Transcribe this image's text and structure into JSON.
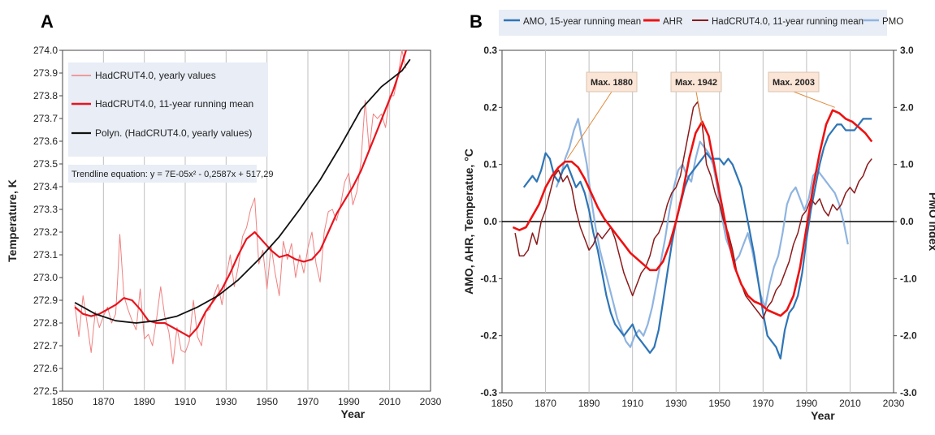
{
  "chart_data": [
    {
      "panel_label": "A",
      "type": "line",
      "xlabel": "Year",
      "ylabel": "Temperature, K",
      "xlim": [
        1850,
        2030
      ],
      "ylim": [
        272.5,
        274.0
      ],
      "xticks": [
        "1850",
        "1870",
        "1890",
        "1910",
        "1930",
        "1950",
        "1970",
        "1990",
        "2010",
        "2030"
      ],
      "yticks": [
        "272.5",
        "272.6",
        "272.7",
        "272.8",
        "272.9",
        "273.0",
        "273.1",
        "273.2",
        "273.3",
        "273.4",
        "273.5",
        "273.6",
        "273.7",
        "273.8",
        "273.9",
        "274.0"
      ],
      "grid": "vertical",
      "legend_position": "top-left",
      "trendline_label": "Trendline equation: y = 7E-05x² - 0,2587x + 517,29",
      "series": [
        {
          "name": "HadCRUT4.0, yearly values",
          "color": "#f08080",
          "x": [
            1856,
            1858,
            1860,
            1862,
            1864,
            1866,
            1868,
            1870,
            1872,
            1874,
            1876,
            1877,
            1878,
            1880,
            1882,
            1884,
            1886,
            1888,
            1890,
            1892,
            1894,
            1896,
            1898,
            1900,
            1902,
            1904,
            1906,
            1908,
            1910,
            1912,
            1914,
            1916,
            1918,
            1920,
            1922,
            1924,
            1926,
            1928,
            1930,
            1932,
            1934,
            1936,
            1938,
            1940,
            1942,
            1944,
            1946,
            1948,
            1950,
            1952,
            1954,
            1956,
            1958,
            1960,
            1962,
            1964,
            1966,
            1968,
            1970,
            1972,
            1974,
            1976,
            1978,
            1980,
            1982,
            1984,
            1986,
            1988,
            1990,
            1992,
            1994,
            1996,
            1998,
            2000,
            2002,
            2004,
            2006,
            2008,
            2010,
            2012,
            2014,
            2016,
            2018
          ],
          "y": [
            272.88,
            272.74,
            272.92,
            272.8,
            272.67,
            272.85,
            272.78,
            272.83,
            272.87,
            272.8,
            272.84,
            273.0,
            273.19,
            272.92,
            272.86,
            272.81,
            272.77,
            272.95,
            272.73,
            272.75,
            272.7,
            272.82,
            272.96,
            272.83,
            272.76,
            272.62,
            272.78,
            272.68,
            272.67,
            272.72,
            272.9,
            272.74,
            272.7,
            272.85,
            272.86,
            272.92,
            272.97,
            272.88,
            273.0,
            273.1,
            272.96,
            273.05,
            273.18,
            273.22,
            273.3,
            273.35,
            273.06,
            273.12,
            272.95,
            273.14,
            273.02,
            272.92,
            273.16,
            273.08,
            273.15,
            273.0,
            273.1,
            273.02,
            273.13,
            273.2,
            273.06,
            272.98,
            273.2,
            273.29,
            273.3,
            273.25,
            273.32,
            273.42,
            273.46,
            273.32,
            273.38,
            273.51,
            273.78,
            273.56,
            273.72,
            273.7,
            273.72,
            273.66,
            273.8,
            273.8,
            273.88,
            274.0,
            273.92
          ]
        },
        {
          "name": "HadCRUT4.0, 11-year running mean",
          "color": "#e8141e",
          "x": [
            1856,
            1860,
            1864,
            1868,
            1872,
            1876,
            1880,
            1884,
            1888,
            1892,
            1896,
            1900,
            1904,
            1908,
            1912,
            1916,
            1920,
            1924,
            1928,
            1932,
            1936,
            1940,
            1944,
            1948,
            1952,
            1956,
            1960,
            1964,
            1968,
            1972,
            1976,
            1980,
            1984,
            1988,
            1992,
            1996,
            2000,
            2004,
            2008,
            2012,
            2016,
            2018
          ],
          "y": [
            272.87,
            272.84,
            272.83,
            272.84,
            272.86,
            272.88,
            272.91,
            272.9,
            272.86,
            272.81,
            272.8,
            272.8,
            272.78,
            272.76,
            272.74,
            272.78,
            272.85,
            272.9,
            272.95,
            273.02,
            273.1,
            273.17,
            273.2,
            273.16,
            273.12,
            273.09,
            273.1,
            273.08,
            273.07,
            273.08,
            273.12,
            273.2,
            273.28,
            273.34,
            273.4,
            273.47,
            273.56,
            273.65,
            273.74,
            273.83,
            273.94,
            274.0
          ]
        },
        {
          "name": "Polyn. (HadCRUT4.0, yearly values)",
          "color": "#111111",
          "x": [
            1856,
            1866,
            1876,
            1886,
            1896,
            1906,
            1916,
            1926,
            1936,
            1946,
            1956,
            1966,
            1976,
            1986,
            1996,
            2006,
            2016,
            2020
          ],
          "y": [
            272.89,
            272.84,
            272.81,
            272.8,
            272.81,
            272.83,
            272.87,
            272.92,
            272.99,
            273.08,
            273.18,
            273.3,
            273.43,
            273.58,
            273.74,
            273.84,
            273.91,
            273.96
          ]
        }
      ]
    },
    {
      "panel_label": "B",
      "type": "line",
      "xlabel": "Year",
      "ylabel": "AMO, AHR, Temperatue, °C",
      "y2label": "PMO index",
      "xlim": [
        1850,
        2030
      ],
      "ylim": [
        -0.3,
        0.3
      ],
      "y2lim": [
        -3.0,
        3.0
      ],
      "xticks": [
        "1850",
        "1870",
        "1890",
        "1910",
        "1930",
        "1950",
        "1970",
        "1990",
        "2010",
        "2030"
      ],
      "yticks": [
        "-0.3",
        "-0.2",
        "-0.1",
        "0.0",
        "0.1",
        "0.2",
        "0.3"
      ],
      "y2ticks": [
        "-3.0",
        "-2.0",
        "-1.0",
        "0.0",
        "1.0",
        "2.0",
        "3.0"
      ],
      "grid": "vertical",
      "legend_position": "top",
      "annotations": [
        {
          "text": "Max. 1880",
          "x": 1880,
          "y": 0.11
        },
        {
          "text": "Max. 1942",
          "x": 1942,
          "y": 0.17
        },
        {
          "text": "Max. 2003",
          "x": 2003,
          "y": 0.2
        }
      ],
      "series": [
        {
          "name": "AMO, 15-year running mean",
          "color": "#2e75b6",
          "axis": "left",
          "x": [
            1860,
            1862,
            1864,
            1866,
            1868,
            1870,
            1872,
            1874,
            1876,
            1878,
            1880,
            1882,
            1884,
            1886,
            1888,
            1890,
            1892,
            1894,
            1896,
            1898,
            1900,
            1902,
            1904,
            1906,
            1908,
            1910,
            1912,
            1914,
            1916,
            1918,
            1920,
            1922,
            1924,
            1926,
            1928,
            1930,
            1932,
            1934,
            1936,
            1938,
            1940,
            1942,
            1944,
            1946,
            1948,
            1950,
            1952,
            1954,
            1956,
            1958,
            1960,
            1962,
            1964,
            1966,
            1968,
            1970,
            1972,
            1974,
            1976,
            1978,
            1980,
            1982,
            1984,
            1986,
            1988,
            1990,
            1992,
            1994,
            1996,
            1998,
            2000,
            2002,
            2004,
            2006,
            2008,
            2010,
            2012,
            2014,
            2016,
            2018,
            2020
          ],
          "y": [
            0.06,
            0.07,
            0.08,
            0.07,
            0.09,
            0.12,
            0.11,
            0.08,
            0.07,
            0.09,
            0.1,
            0.08,
            0.06,
            0.07,
            0.05,
            0.02,
            -0.02,
            -0.05,
            -0.09,
            -0.13,
            -0.16,
            -0.18,
            -0.19,
            -0.2,
            -0.19,
            -0.18,
            -0.2,
            -0.21,
            -0.22,
            -0.23,
            -0.22,
            -0.19,
            -0.14,
            -0.09,
            -0.04,
            0.0,
            0.03,
            0.06,
            0.08,
            0.09,
            0.1,
            0.11,
            0.12,
            0.11,
            0.11,
            0.11,
            0.1,
            0.11,
            0.1,
            0.08,
            0.06,
            0.02,
            -0.02,
            -0.06,
            -0.11,
            -0.16,
            -0.2,
            -0.21,
            -0.22,
            -0.24,
            -0.19,
            -0.16,
            -0.15,
            -0.13,
            -0.09,
            -0.03,
            0.02,
            0.06,
            0.1,
            0.13,
            0.15,
            0.16,
            0.17,
            0.17,
            0.16,
            0.16,
            0.16,
            0.17,
            0.18,
            0.18,
            0.18
          ]
        },
        {
          "name": "AHR",
          "color": "#ee1111",
          "axis": "left",
          "x": [
            1855,
            1858,
            1861,
            1864,
            1867,
            1870,
            1873,
            1876,
            1879,
            1882,
            1885,
            1888,
            1891,
            1894,
            1897,
            1900,
            1903,
            1906,
            1909,
            1912,
            1915,
            1918,
            1921,
            1924,
            1927,
            1930,
            1933,
            1936,
            1939,
            1942,
            1945,
            1948,
            1951,
            1954,
            1957,
            1960,
            1963,
            1966,
            1969,
            1972,
            1975,
            1978,
            1981,
            1984,
            1987,
            1990,
            1993,
            1996,
            1999,
            2002,
            2005,
            2008,
            2011,
            2014,
            2017,
            2020
          ],
          "y": [
            -0.01,
            -0.015,
            -0.01,
            0.01,
            0.03,
            0.06,
            0.08,
            0.095,
            0.105,
            0.105,
            0.095,
            0.075,
            0.05,
            0.025,
            0.005,
            -0.01,
            -0.025,
            -0.04,
            -0.055,
            -0.065,
            -0.075,
            -0.085,
            -0.085,
            -0.07,
            -0.04,
            0.0,
            0.05,
            0.11,
            0.155,
            0.175,
            0.15,
            0.09,
            0.03,
            -0.03,
            -0.08,
            -0.11,
            -0.13,
            -0.14,
            -0.145,
            -0.155,
            -0.16,
            -0.165,
            -0.155,
            -0.13,
            -0.08,
            -0.01,
            0.06,
            0.12,
            0.17,
            0.195,
            0.19,
            0.18,
            0.175,
            0.165,
            0.155,
            0.14
          ]
        },
        {
          "name": "HadCRUT4.0, 11-year running mean",
          "color": "#8b1a1a",
          "axis": "left",
          "x": [
            1856,
            1858,
            1860,
            1862,
            1864,
            1866,
            1868,
            1870,
            1872,
            1874,
            1876,
            1878,
            1880,
            1882,
            1884,
            1886,
            1888,
            1890,
            1892,
            1894,
            1896,
            1898,
            1900,
            1902,
            1904,
            1906,
            1908,
            1910,
            1912,
            1914,
            1916,
            1918,
            1920,
            1922,
            1924,
            1926,
            1928,
            1930,
            1932,
            1934,
            1936,
            1938,
            1940,
            1942,
            1944,
            1946,
            1948,
            1950,
            1952,
            1954,
            1956,
            1958,
            1960,
            1962,
            1964,
            1966,
            1968,
            1970,
            1972,
            1974,
            1976,
            1978,
            1980,
            1982,
            1984,
            1986,
            1988,
            1990,
            1992,
            1994,
            1996,
            1998,
            2000,
            2002,
            2004,
            2006,
            2008,
            2010,
            2012,
            2014,
            2016,
            2018,
            2020
          ],
          "y": [
            -0.02,
            -0.06,
            -0.06,
            -0.05,
            -0.02,
            -0.04,
            0.0,
            0.02,
            0.05,
            0.08,
            0.09,
            0.07,
            0.08,
            0.06,
            0.02,
            -0.01,
            -0.03,
            -0.05,
            -0.04,
            -0.02,
            -0.03,
            -0.02,
            -0.01,
            -0.03,
            -0.06,
            -0.09,
            -0.11,
            -0.13,
            -0.11,
            -0.09,
            -0.08,
            -0.06,
            -0.03,
            -0.02,
            0.0,
            0.03,
            0.05,
            0.06,
            0.08,
            0.12,
            0.16,
            0.2,
            0.21,
            0.17,
            0.1,
            0.08,
            0.05,
            0.03,
            0.0,
            -0.02,
            -0.05,
            -0.09,
            -0.11,
            -0.13,
            -0.14,
            -0.15,
            -0.16,
            -0.17,
            -0.15,
            -0.14,
            -0.12,
            -0.11,
            -0.09,
            -0.07,
            -0.04,
            -0.02,
            0.01,
            0.02,
            0.04,
            0.03,
            0.04,
            0.02,
            0.01,
            0.03,
            0.02,
            0.03,
            0.05,
            0.06,
            0.05,
            0.07,
            0.08,
            0.1,
            0.11
          ]
        },
        {
          "name": "PMO",
          "color": "#8fb4e0",
          "axis": "right",
          "x": [
            1875,
            1877,
            1879,
            1881,
            1883,
            1885,
            1887,
            1889,
            1891,
            1893,
            1895,
            1897,
            1899,
            1901,
            1903,
            1905,
            1907,
            1909,
            1911,
            1913,
            1915,
            1917,
            1919,
            1921,
            1923,
            1925,
            1927,
            1929,
            1931,
            1933,
            1935,
            1937,
            1939,
            1941,
            1943,
            1945,
            1947,
            1949,
            1951,
            1953,
            1955,
            1957,
            1959,
            1961,
            1963,
            1965,
            1967,
            1969,
            1971,
            1973,
            1975,
            1977,
            1979,
            1981,
            1983,
            1985,
            1987,
            1989,
            1991,
            1993,
            1995,
            1997,
            1999,
            2001,
            2003,
            2005,
            2007,
            2009
          ],
          "y": [
            0.6,
            0.8,
            1.1,
            1.3,
            1.6,
            1.8,
            1.4,
            1.0,
            0.4,
            -0.1,
            -0.5,
            -0.8,
            -1.1,
            -1.4,
            -1.7,
            -1.9,
            -2.1,
            -2.2,
            -2.0,
            -1.9,
            -2.0,
            -1.8,
            -1.5,
            -1.1,
            -0.7,
            -0.3,
            0.2,
            0.6,
            0.9,
            1.0,
            0.8,
            0.7,
            1.1,
            1.4,
            1.3,
            1.2,
            1.0,
            0.6,
            0.1,
            -0.3,
            -0.5,
            -0.7,
            -0.6,
            -0.4,
            -0.2,
            -0.5,
            -0.9,
            -1.3,
            -1.5,
            -1.1,
            -0.8,
            -0.6,
            -0.2,
            0.3,
            0.5,
            0.6,
            0.4,
            0.2,
            0.4,
            0.8,
            0.9,
            0.8,
            0.7,
            0.6,
            0.5,
            0.3,
            0.0,
            -0.4
          ]
        }
      ]
    }
  ]
}
